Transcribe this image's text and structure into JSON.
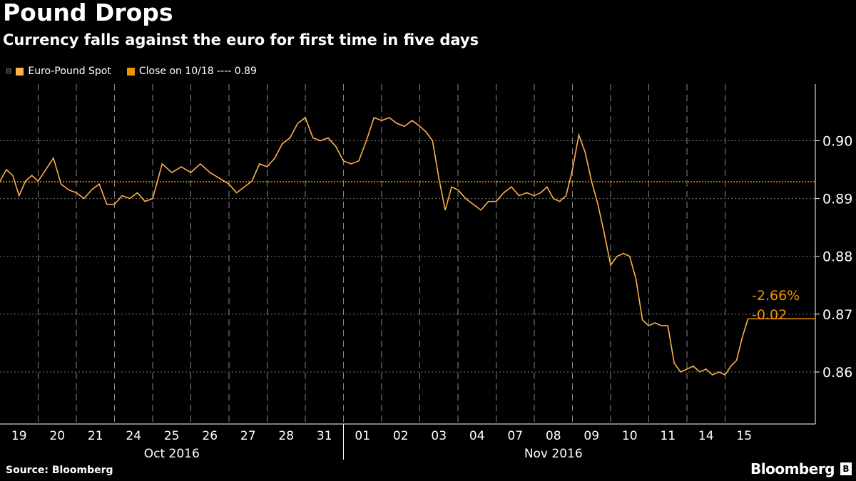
{
  "chart_data": {
    "type": "line",
    "title": "Pound Drops",
    "subtitle": "Currency falls against the euro for first time in five days",
    "legend": [
      {
        "label": "Euro-Pound Spot",
        "color": "#ffb04a"
      },
      {
        "label": "Close on 10/18 ---- 0.89",
        "color": "#f39200"
      }
    ],
    "reference_line": {
      "value": 0.8929,
      "color": "#f39200"
    },
    "annotation": {
      "pct": "-2.66%",
      "abs": "-0.02",
      "last_value": 0.8692
    },
    "ylim": [
      0.851,
      0.9098
    ],
    "yticks": [
      0.86,
      0.87,
      0.88,
      0.89,
      0.9
    ],
    "ytick_labels": [
      "0.86",
      "0.87",
      "0.88",
      "0.89",
      "0.90"
    ],
    "x_days": [
      "19",
      "20",
      "21",
      "24",
      "25",
      "26",
      "27",
      "28",
      "31",
      "01",
      "02",
      "03",
      "04",
      "07",
      "08",
      "09",
      "10",
      "11",
      "14",
      "15"
    ],
    "month_labels": [
      {
        "label": "Oct 2016",
        "from": 0,
        "to": 9
      },
      {
        "label": "Nov 2016",
        "from": 9,
        "to": 20
      }
    ],
    "series": [
      {
        "name": "Euro-Pound Spot",
        "daily_values": [
          [
            0.893,
            0.895,
            0.894,
            0.8905,
            0.893,
            0.894
          ],
          [
            0.893,
            0.895,
            0.897,
            0.8925,
            0.8915
          ],
          [
            0.891,
            0.89,
            0.8915,
            0.8925,
            0.889
          ],
          [
            0.889,
            0.8905,
            0.89,
            0.891,
            0.8895
          ],
          [
            0.89,
            0.896,
            0.8945,
            0.8955
          ],
          [
            0.8945,
            0.896,
            0.8945,
            0.8935
          ],
          [
            0.8925,
            0.891,
            0.892,
            0.893,
            0.896
          ],
          [
            0.8955,
            0.897,
            0.8995,
            0.9005,
            0.903
          ],
          [
            0.904,
            0.9005,
            0.9,
            0.9005,
            0.899
          ],
          [
            0.8965,
            0.896,
            0.8965,
            0.9,
            0.904
          ],
          [
            0.9035,
            0.904,
            0.903,
            0.9025,
            0.9035
          ],
          [
            0.9025,
            0.9015,
            0.9,
            0.8935,
            0.888,
            0.892
          ],
          [
            0.8915,
            0.89,
            0.889,
            0.888,
            0.8895
          ],
          [
            0.8895,
            0.891,
            0.892,
            0.8905,
            0.891
          ],
          [
            0.8905,
            0.891,
            0.892,
            0.89,
            0.8895,
            0.8905
          ],
          [
            0.895,
            0.901,
            0.898,
            0.893,
            0.889,
            0.884
          ],
          [
            0.8785,
            0.88,
            0.8805,
            0.88,
            0.876,
            0.869
          ],
          [
            0.868,
            0.8685,
            0.868,
            0.868,
            0.8615,
            0.86
          ],
          [
            0.8605,
            0.861,
            0.86,
            0.8605,
            0.8595,
            0.86
          ],
          [
            0.8595,
            0.861,
            0.862,
            0.866,
            0.8692
          ]
        ]
      }
    ]
  },
  "source": "Source: Bloomberg",
  "brand": "Bloomberg"
}
